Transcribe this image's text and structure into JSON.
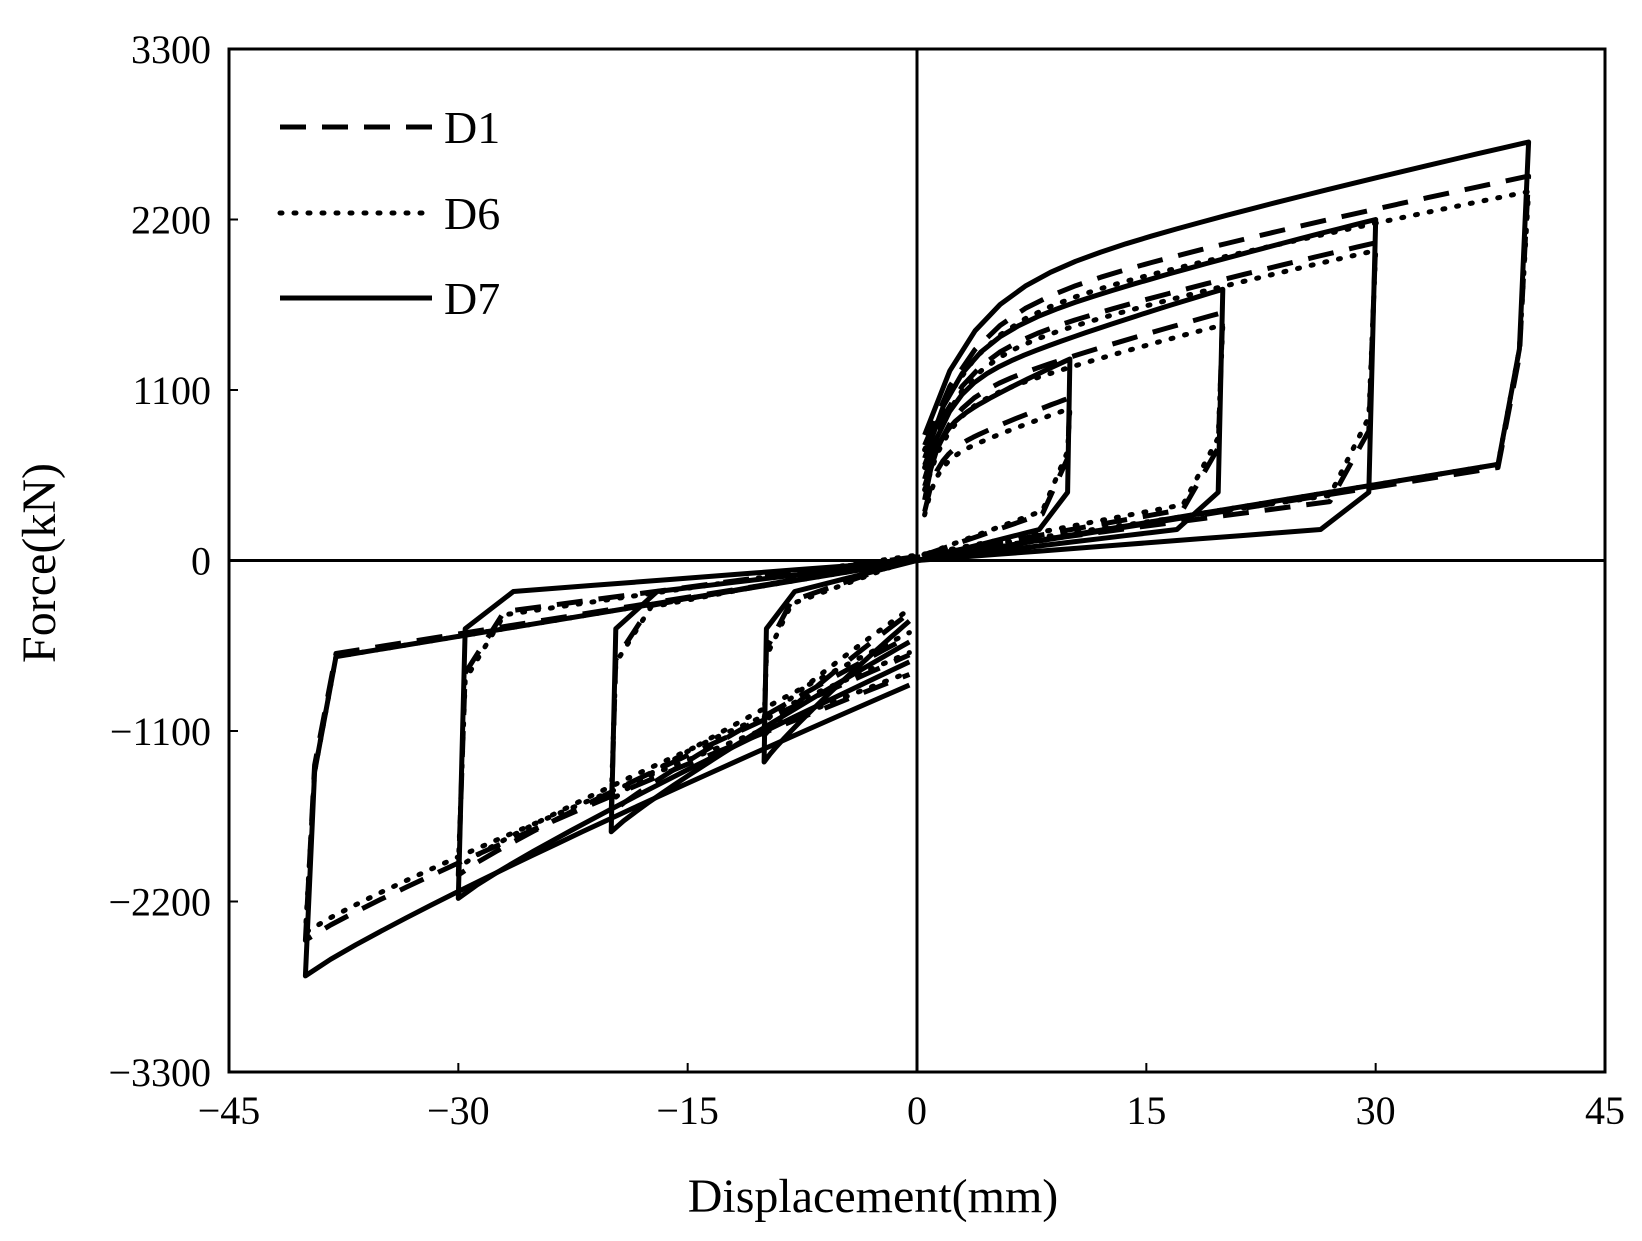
{
  "chart_data": {
    "type": "line",
    "title": "",
    "xlabel": "Displacement(mm)",
    "ylabel": "Force(kN)",
    "xlim": [
      -45,
      45
    ],
    "ylim": [
      -3300,
      3300
    ],
    "x_ticks": [
      -45,
      -30,
      -15,
      0,
      15,
      30,
      45
    ],
    "x_tick_labels": [
      "−45",
      "−30",
      "−15",
      "0",
      "15",
      "30",
      "45"
    ],
    "y_ticks": [
      3300,
      2200,
      1100,
      0,
      -1100,
      -2200,
      -3300
    ],
    "y_tick_labels": [
      "3300",
      "2200",
      "1100",
      "0",
      "−1100",
      "−2200",
      "−3300"
    ],
    "grid": false,
    "zero_lines": true,
    "legend": {
      "position": "top-left"
    },
    "colors": {
      "line": "#000000",
      "background": "#ffffff"
    },
    "series": [
      {
        "name": "D1",
        "style": "dashed",
        "loops": [
          {
            "dmax": 10,
            "fpos": 1050,
            "fneg": -1130,
            "ret_pos": 300,
            "ret_neg": -260,
            "knee": 0.82
          },
          {
            "dmax": 20,
            "fpos": 1600,
            "fneg": -1630,
            "ret_pos": 330,
            "ret_neg": -290,
            "knee": 0.87
          },
          {
            "dmax": 30,
            "fpos": 2050,
            "fneg": -2030,
            "ret_pos": 380,
            "ret_neg": -330,
            "knee": 0.9
          },
          {
            "dmax": 40,
            "fpos": 2480,
            "fneg": -2450,
            "ret_pos": 600,
            "ret_neg": -600,
            "knee": 0.95
          }
        ]
      },
      {
        "name": "D6",
        "style": "dotted",
        "loops": [
          {
            "dmax": 10,
            "fpos": 980,
            "fneg": -1050,
            "ret_pos": 320,
            "ret_neg": -280,
            "knee": 0.82
          },
          {
            "dmax": 20,
            "fpos": 1520,
            "fneg": -1550,
            "ret_pos": 360,
            "ret_neg": -300,
            "knee": 0.87
          },
          {
            "dmax": 30,
            "fpos": 2000,
            "fneg": -1980,
            "ret_pos": 420,
            "ret_neg": -350,
            "knee": 0.9
          },
          {
            "dmax": 40,
            "fpos": 2380,
            "fneg": -2400,
            "ret_pos": 620,
            "ret_neg": -620,
            "knee": 0.95
          }
        ]
      },
      {
        "name": "D7",
        "style": "solid",
        "loops": [
          {
            "dmax": 10,
            "fpos": 1300,
            "fneg": -1300,
            "ret_pos": 200,
            "ret_neg": -200,
            "knee": 0.8
          },
          {
            "dmax": 20,
            "fpos": 1750,
            "fneg": -1750,
            "ret_pos": 200,
            "ret_neg": -200,
            "knee": 0.85
          },
          {
            "dmax": 30,
            "fpos": 2200,
            "fneg": -2180,
            "ret_pos": 200,
            "ret_neg": -200,
            "knee": 0.88
          },
          {
            "dmax": 40,
            "fpos": 2700,
            "fneg": -2680,
            "ret_pos": 620,
            "ret_neg": -620,
            "knee": 0.95
          }
        ]
      }
    ]
  }
}
